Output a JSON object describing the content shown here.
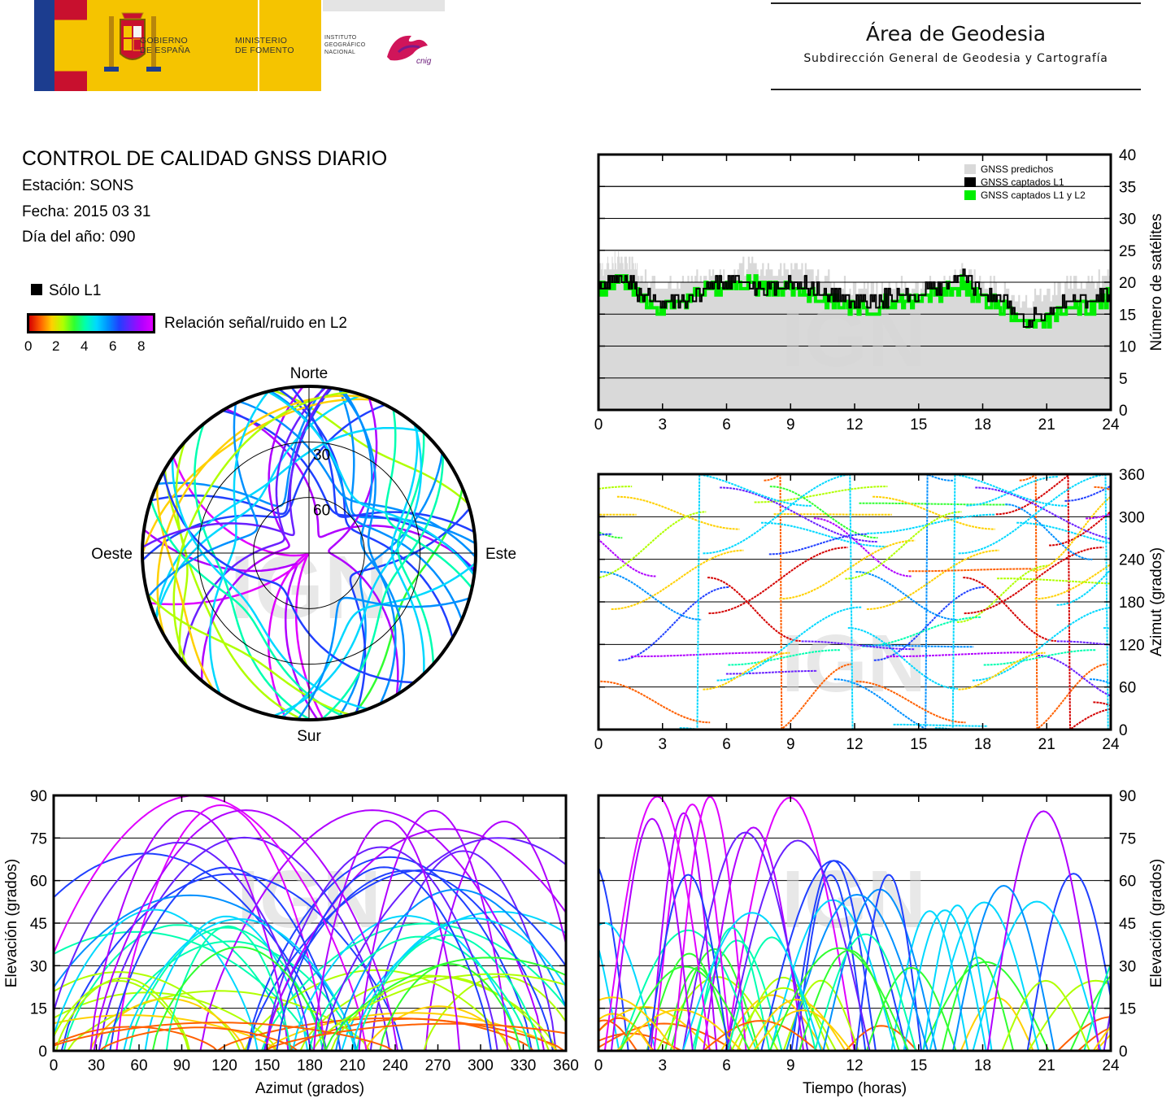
{
  "header": {
    "gov_line1": "GOBIERNO",
    "gov_line2": "DE ESPAÑA",
    "ministry_line1": "MINISTERIO",
    "ministry_line2": "DE FOMENTO",
    "ign_line1": "INSTITUTO",
    "ign_line2": "GEOGRÁFICO",
    "ign_line3": "NACIONAL",
    "cnig": "cnig",
    "area_title": "Área de Geodesia",
    "area_subtitle": "Subdirección General de Geodesia y Cartografía"
  },
  "report": {
    "title": "CONTROL DE CALIDAD GNSS DIARIO",
    "station": "Estación: SONS",
    "date": "Fecha: 2015 03 31",
    "doy": "Día del año: 090"
  },
  "legend": {
    "l1_only": "Sólo L1",
    "snr_label": "Relación señal/ruido en L2",
    "snr_ticks": [
      "0",
      "2",
      "4",
      "6",
      "8"
    ],
    "colors": [
      "#d40000",
      "#ff6000",
      "#ffd000",
      "#b0ff00",
      "#30ff30",
      "#00ffb0",
      "#00d8ff",
      "#0090ff",
      "#2040ff",
      "#6a20ff",
      "#b000ff",
      "#e000ff"
    ]
  },
  "watermark": "IGN",
  "chart_data": [
    {
      "id": "satellite-count",
      "type": "area",
      "xlabel": "",
      "ylabel": "Número de satélites",
      "xlim": [
        0,
        24
      ],
      "ylim": [
        0,
        40
      ],
      "xticks": [
        0,
        3,
        6,
        9,
        12,
        15,
        18,
        21,
        24
      ],
      "yticks": [
        0,
        5,
        10,
        15,
        20,
        25,
        30,
        35,
        40
      ],
      "grid": true,
      "legend_position": "top-right",
      "series": [
        {
          "name": "GNSS predichos",
          "color": "#d9d9d9",
          "x": [
            0,
            0.5,
            1,
            1.5,
            2,
            3,
            4,
            5,
            6,
            7,
            8,
            9,
            10,
            11,
            12,
            13,
            14,
            15,
            16,
            17,
            18,
            19,
            20,
            21,
            22,
            23,
            24
          ],
          "values": [
            22,
            23,
            24,
            23,
            21,
            19,
            20,
            21,
            21,
            23,
            22,
            22,
            21,
            20,
            19,
            19,
            20,
            19,
            20,
            22,
            20,
            19,
            17,
            18,
            20,
            20,
            21
          ]
        },
        {
          "name": "GNSS captados L1",
          "color": "#000000",
          "x": [
            0,
            0.5,
            1,
            1.5,
            2,
            3,
            4,
            5,
            6,
            7,
            8,
            9,
            10,
            11,
            12,
            13,
            14,
            15,
            16,
            17,
            18,
            19,
            20,
            21,
            22,
            23,
            24
          ],
          "values": [
            19,
            20,
            21,
            20,
            18,
            17,
            17,
            19,
            20,
            20,
            19,
            20,
            19,
            18,
            17,
            17,
            18,
            18,
            19,
            21,
            18,
            17,
            14,
            15,
            17,
            17,
            19
          ]
        },
        {
          "name": "GNSS captados L1 y L2",
          "color": "#00ee00",
          "x": [
            0,
            0.5,
            1,
            1.5,
            2,
            3,
            4,
            5,
            6,
            7,
            8,
            9,
            10,
            11,
            12,
            13,
            14,
            15,
            16,
            17,
            18,
            19,
            20,
            21,
            22,
            23,
            24
          ],
          "values": [
            19,
            19,
            21,
            19,
            17,
            16,
            17,
            19,
            19,
            20,
            19,
            19,
            18,
            17,
            16,
            16,
            17,
            17,
            18,
            20,
            17,
            16,
            13,
            14,
            16,
            16,
            18
          ]
        }
      ]
    },
    {
      "id": "azimuth-vs-time",
      "type": "scatter",
      "xlabel": "",
      "ylabel": "Azimut (grados)",
      "xlim": [
        0,
        24
      ],
      "ylim": [
        0,
        360
      ],
      "xticks": [
        0,
        3,
        6,
        9,
        12,
        15,
        18,
        21,
        24
      ],
      "yticks": [
        0,
        60,
        120,
        180,
        240,
        300,
        360
      ],
      "grid": true
    },
    {
      "id": "skyplot",
      "type": "scatter",
      "labels": {
        "north": "Norte",
        "south": "Sur",
        "east": "Este",
        "west": "Oeste"
      },
      "rings": [
        30,
        60
      ]
    },
    {
      "id": "elevation-vs-azimuth",
      "type": "scatter",
      "xlabel": "Azimut (grados)",
      "ylabel": "Elevación (grados)",
      "xlim": [
        0,
        360
      ],
      "ylim": [
        0,
        90
      ],
      "xticks": [
        0,
        30,
        60,
        90,
        120,
        150,
        180,
        210,
        240,
        270,
        300,
        330,
        360
      ],
      "yticks": [
        0,
        15,
        30,
        45,
        60,
        75,
        90
      ],
      "grid": true
    },
    {
      "id": "elevation-vs-time",
      "type": "scatter",
      "xlabel": "Tiempo (horas)",
      "ylabel": "Elevación (grados)",
      "xlim": [
        0,
        24
      ],
      "ylim": [
        0,
        90
      ],
      "xticks": [
        0,
        3,
        6,
        9,
        12,
        15,
        18,
        21,
        24
      ],
      "yticks": [
        0,
        15,
        30,
        45,
        60,
        75,
        90
      ],
      "grid": true
    }
  ]
}
